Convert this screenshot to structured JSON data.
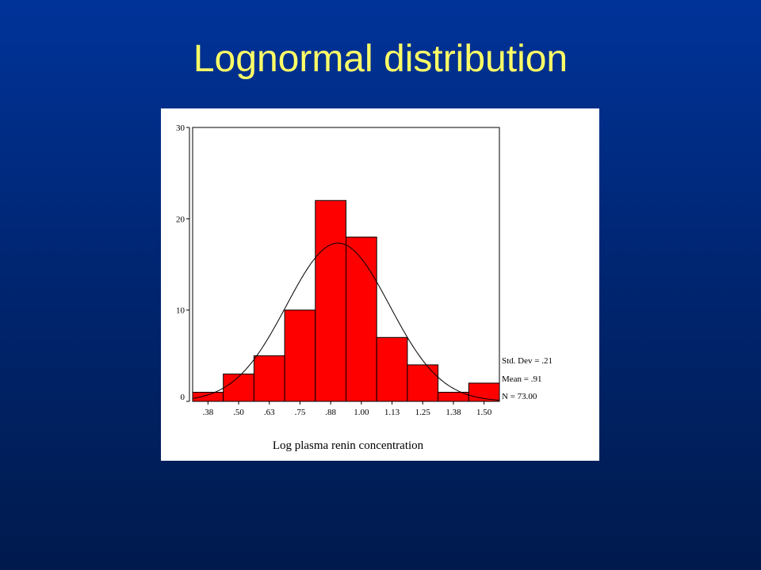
{
  "slide": {
    "title": "Lognormal distribution"
  },
  "colors": {
    "background_top": "#003399",
    "background_bottom": "#001a4d",
    "title": "#ffff66",
    "bar_fill": "#ff0000",
    "panel": "#ffffff"
  },
  "chart_data": {
    "type": "bar",
    "subtype": "histogram with normal curve",
    "categories": [
      ".38",
      ".50",
      ".63",
      ".75",
      ".88",
      "1.00",
      "1.13",
      "1.25",
      "1.38",
      "1.50"
    ],
    "values": [
      1,
      3,
      5,
      10,
      22,
      18,
      7,
      4,
      1,
      2
    ],
    "ylim": [
      0,
      30
    ],
    "yticks": [
      0,
      10,
      20,
      30
    ],
    "xlabel": "Log plasma renin concentration",
    "ylabel": "",
    "grid": false,
    "normal_curve": {
      "mean": 0.91,
      "sd": 0.21,
      "n": 73,
      "bin_width": 0.125
    },
    "stats": [
      "Std. Dev = .21",
      "Mean = .91",
      "N = 73.00"
    ]
  }
}
